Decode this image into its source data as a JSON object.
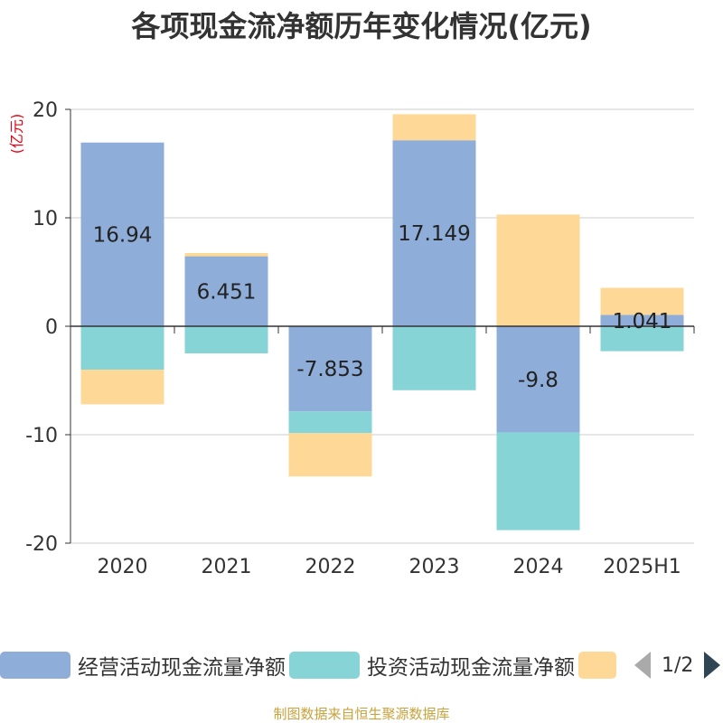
{
  "title": "各项现金流净额历年变化情况(亿元)",
  "unit_label": "(亿元)",
  "source": "制图数据来自恒生聚源数据库",
  "legend": {
    "items": [
      {
        "label": "经营活动现金流量净额",
        "color": "#8eadd9"
      },
      {
        "label": "投资活动现金流量净额",
        "color": "#86d4d6"
      },
      {
        "label": "",
        "color": "#fed897"
      }
    ],
    "page": "1/2"
  },
  "chart_data": {
    "type": "bar",
    "stacked": true,
    "categories": [
      "2020",
      "2021",
      "2022",
      "2023",
      "2024",
      "2025H1"
    ],
    "ylim": [
      -20,
      20
    ],
    "yticks": [
      -20,
      -10,
      0,
      10,
      20
    ],
    "ytick_labels": [
      "-20",
      "-10",
      "0",
      "10",
      "20"
    ],
    "grid": true,
    "legend_position": "bottom",
    "series": [
      {
        "name": "经营活动现金流量净额",
        "color": "#8eadd9",
        "values": [
          16.94,
          6.451,
          -7.853,
          17.149,
          -9.8,
          1.041
        ],
        "labels": [
          "16.94",
          "6.451",
          "-7.853",
          "17.149",
          "-9.8",
          "1.041"
        ]
      },
      {
        "name": "投资活动现金流量净额",
        "color": "#86d4d6",
        "values": [
          -4.0,
          -2.5,
          -2.0,
          -5.9,
          -9.0,
          -2.3
        ]
      },
      {
        "color": "#fed897",
        "values": [
          -3.2,
          0.3,
          -4.0,
          2.4,
          10.3,
          2.5
        ]
      }
    ]
  }
}
